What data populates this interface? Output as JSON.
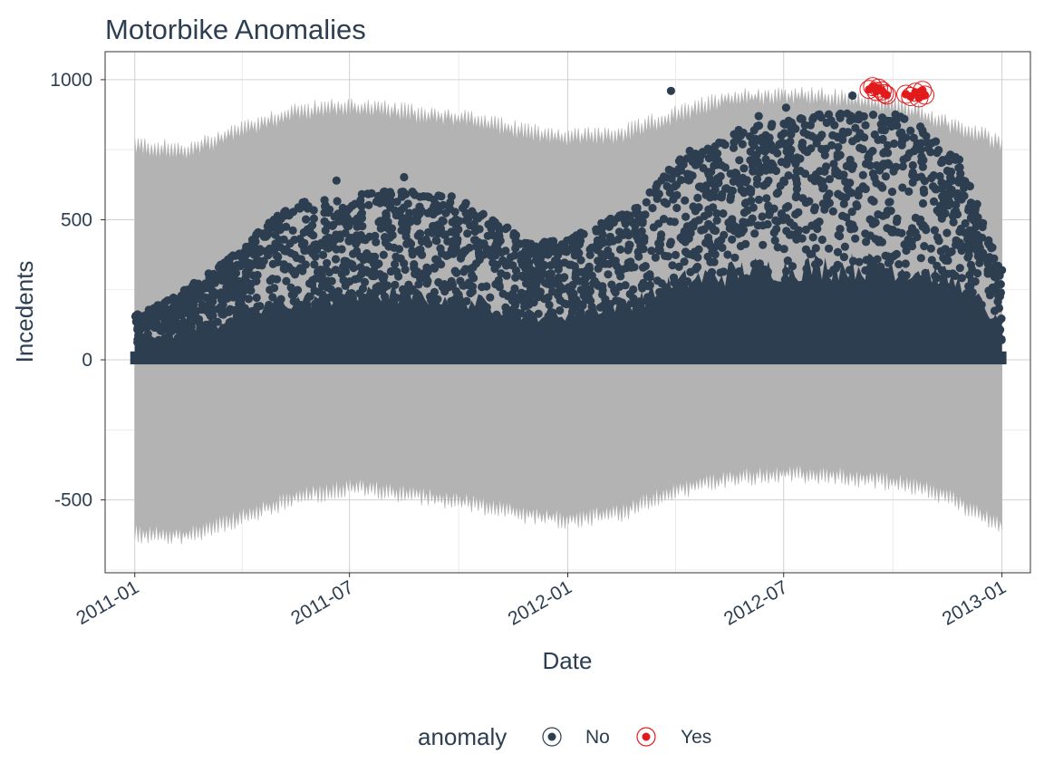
{
  "chart_data": {
    "type": "scatter",
    "title": "Motorbike Anomalies",
    "xlabel": "Date",
    "ylabel": "Incedents",
    "x_ticks": [
      "2011-01",
      "2011-07",
      "2012-01",
      "2012-07",
      "2013-01"
    ],
    "y_ticks": [
      "-500",
      "0",
      "500",
      "1000"
    ],
    "ylim": [
      -760,
      1100
    ],
    "xlim": [
      "2010-12-07",
      "2013-01-25"
    ],
    "grid": true,
    "legend": {
      "title": "anomaly",
      "position": "bottom",
      "entries": [
        {
          "label": "No",
          "color": "#2c3e50"
        },
        {
          "label": "Yes",
          "color": "#e31a1c"
        }
      ]
    },
    "band": {
      "description_color": "#b3b3b3",
      "upper": [
        [
          "2011-01-01",
          780
        ],
        [
          "2011-02-15",
          760
        ],
        [
          "2011-04-01",
          840
        ],
        [
          "2011-05-15",
          900
        ],
        [
          "2011-07-01",
          920
        ],
        [
          "2011-08-15",
          900
        ],
        [
          "2011-10-01",
          880
        ],
        [
          "2011-11-15",
          840
        ],
        [
          "2012-01-01",
          810
        ],
        [
          "2012-02-15",
          820
        ],
        [
          "2012-04-01",
          890
        ],
        [
          "2012-05-15",
          950
        ],
        [
          "2012-07-01",
          960
        ],
        [
          "2012-08-15",
          950
        ],
        [
          "2012-10-01",
          930
        ],
        [
          "2012-11-15",
          860
        ],
        [
          "2013-01-01",
          790
        ]
      ],
      "lower": [
        [
          "2011-01-01",
          -640
        ],
        [
          "2011-02-15",
          -640
        ],
        [
          "2011-04-01",
          -580
        ],
        [
          "2011-05-15",
          -510
        ],
        [
          "2011-07-01",
          -470
        ],
        [
          "2011-08-15",
          -490
        ],
        [
          "2011-10-01",
          -520
        ],
        [
          "2011-11-15",
          -560
        ],
        [
          "2012-01-01",
          -590
        ],
        [
          "2012-02-15",
          -560
        ],
        [
          "2012-04-01",
          -480
        ],
        [
          "2012-05-15",
          -440
        ],
        [
          "2012-07-01",
          -420
        ],
        [
          "2012-08-15",
          -430
        ],
        [
          "2012-10-01",
          -450
        ],
        [
          "2012-11-15",
          -500
        ],
        [
          "2013-01-01",
          -610
        ]
      ]
    },
    "series": [
      {
        "name": "No",
        "color": "#2c3e50",
        "envelope_max": [
          [
            "2011-01-01",
            160
          ],
          [
            "2011-02-01",
            220
          ],
          [
            "2011-03-01",
            300
          ],
          [
            "2011-04-01",
            400
          ],
          [
            "2011-05-01",
            520
          ],
          [
            "2011-06-01",
            580
          ],
          [
            "2011-07-01",
            590
          ],
          [
            "2011-08-01",
            610
          ],
          [
            "2011-09-01",
            600
          ],
          [
            "2011-10-01",
            580
          ],
          [
            "2011-11-01",
            500
          ],
          [
            "2011-12-01",
            420
          ],
          [
            "2012-01-01",
            430
          ],
          [
            "2012-02-01",
            500
          ],
          [
            "2012-03-01",
            560
          ],
          [
            "2012-04-01",
            720
          ],
          [
            "2012-05-01",
            790
          ],
          [
            "2012-06-01",
            840
          ],
          [
            "2012-07-01",
            860
          ],
          [
            "2012-08-01",
            880
          ],
          [
            "2012-09-01",
            880
          ],
          [
            "2012-10-01",
            880
          ],
          [
            "2012-11-01",
            820
          ],
          [
            "2012-12-01",
            700
          ],
          [
            "2013-01-01",
            300
          ]
        ],
        "highlights": [
          [
            "2012-03-28",
            960
          ],
          [
            "2012-08-28",
            943
          ],
          [
            "2011-08-16",
            652
          ],
          [
            "2011-06-20",
            640
          ],
          [
            "2012-07-03",
            900
          ],
          [
            "2012-06-10",
            870
          ],
          [
            "2013-01-01",
            320
          ],
          [
            "2011-04-15",
            455
          ]
        ]
      },
      {
        "name": "Yes",
        "color": "#e31a1c",
        "points": [
          [
            "2012-09-11",
            965
          ],
          [
            "2012-09-14",
            975
          ],
          [
            "2012-09-17",
            958
          ],
          [
            "2012-09-19",
            970
          ],
          [
            "2012-09-22",
            960
          ],
          [
            "2012-09-24",
            950
          ],
          [
            "2012-09-26",
            945
          ],
          [
            "2012-10-12",
            948
          ],
          [
            "2012-10-16",
            940
          ],
          [
            "2012-10-20",
            955
          ],
          [
            "2012-10-23",
            935
          ],
          [
            "2012-10-26",
            962
          ],
          [
            "2012-10-28",
            945
          ]
        ]
      }
    ]
  }
}
